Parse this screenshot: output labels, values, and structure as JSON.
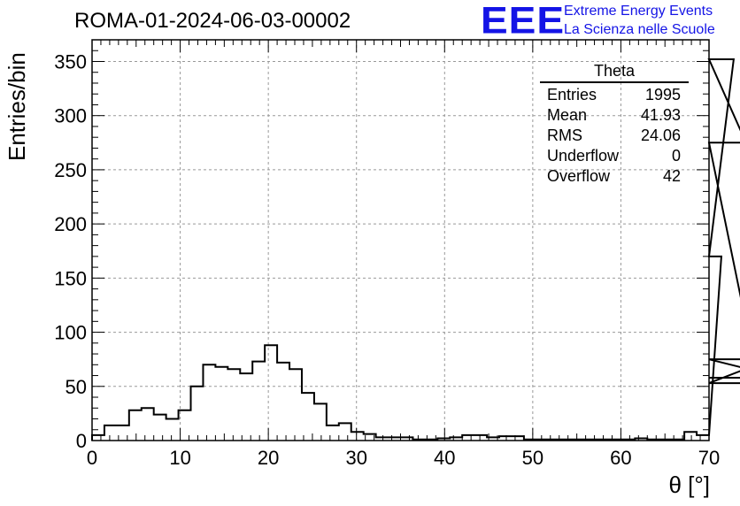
{
  "chart_data": {
    "type": "bar",
    "histogram": true,
    "title": "ROMA-01-2024-06-03-00002",
    "xlabel": "θ [°]",
    "ylabel": "Entries/bin",
    "xlim": [
      0,
      70
    ],
    "ylim": [
      0,
      370
    ],
    "grid": true,
    "bin_width": 1.4,
    "x_ticks": [
      0,
      10,
      20,
      30,
      40,
      50,
      60,
      70
    ],
    "y_ticks": [
      0,
      50,
      100,
      150,
      200,
      250,
      300,
      350
    ],
    "values": [
      5,
      14,
      14,
      28,
      30,
      24,
      20,
      28,
      50,
      70,
      68,
      66,
      62,
      73,
      88,
      72,
      66,
      44,
      34,
      14,
      16,
      8,
      6,
      3,
      3,
      3,
      1,
      1,
      2,
      3,
      5,
      5,
      3,
      4,
      4,
      1,
      1,
      1,
      1,
      1,
      1,
      1,
      1,
      1,
      2,
      1,
      1,
      1,
      8,
      5,
      5,
      170,
      352,
      275,
      53,
      75,
      58
    ]
  },
  "stats_box": {
    "title": "Theta",
    "rows": [
      {
        "label": "Entries",
        "value": "1995"
      },
      {
        "label": "Mean",
        "value": "41.93"
      },
      {
        "label": "RMS",
        "value": "24.06"
      },
      {
        "label": "Underflow",
        "value": "0"
      },
      {
        "label": "Overflow",
        "value": "42"
      }
    ]
  },
  "logo": {
    "mark": "EEE",
    "line1": "Extreme Energy Events",
    "line2": "La Scienza nelle Scuole",
    "color": "#1414e6"
  }
}
